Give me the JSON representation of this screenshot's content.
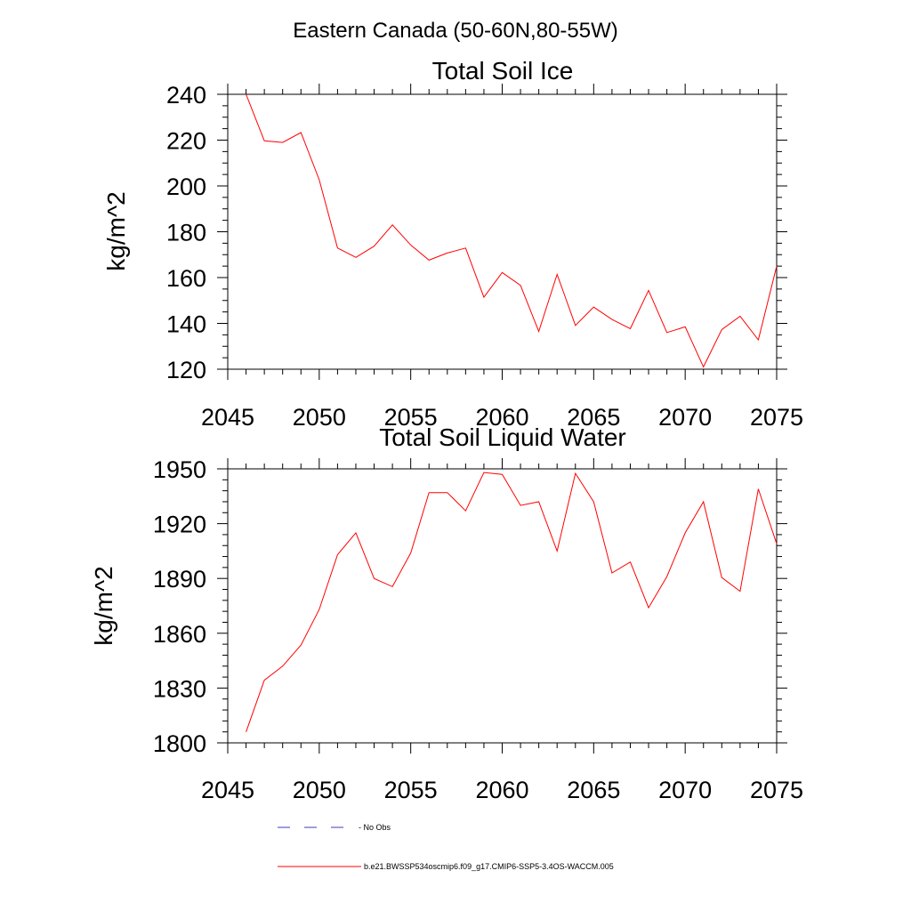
{
  "figure_title": "Eastern Canada (50-60N,80-55W)",
  "colors": {
    "series": "#ff0000",
    "obs": "#3b3bb5",
    "axes": "#000000"
  },
  "chart_data": [
    {
      "type": "line",
      "title": "Total Soil Ice",
      "xlabel": "",
      "ylabel": "kg/m^2",
      "xlim": [
        2045,
        2075
      ],
      "ylim": [
        120,
        240
      ],
      "xticks": [
        2045,
        2050,
        2055,
        2060,
        2065,
        2070,
        2075
      ],
      "yticks": [
        120,
        140,
        160,
        180,
        200,
        220,
        240
      ],
      "y_minor_step": 5,
      "x_minor_step": 1,
      "grid": false,
      "series": [
        {
          "name": "b.e21.BWSSP534oscmip6.f09_g17.CMIP6-SSP5-3.4OS-WACCM.005",
          "x": [
            2046,
            2047,
            2048,
            2049,
            2050,
            2051,
            2052,
            2053,
            2054,
            2055,
            2056,
            2057,
            2058,
            2059,
            2060,
            2061,
            2062,
            2063,
            2064,
            2065,
            2066,
            2067,
            2068,
            2069,
            2070,
            2071,
            2072,
            2073,
            2074,
            2075
          ],
          "values": [
            240,
            219.7,
            219,
            223.3,
            202.7,
            172.9,
            168.8,
            173.7,
            183,
            174.2,
            167.6,
            170.7,
            172.9,
            151.4,
            162.2,
            156.6,
            136.5,
            161.4,
            139.1,
            147.1,
            141.7,
            137.7,
            154.4,
            136,
            138.5,
            121,
            137.3,
            143.1,
            132.8,
            165
          ]
        }
      ]
    },
    {
      "type": "line",
      "title": "Total Soil Liquid Water",
      "xlabel": "",
      "ylabel": "kg/m^2",
      "xlim": [
        2045,
        2075
      ],
      "ylim": [
        1800,
        1950
      ],
      "xticks": [
        2045,
        2050,
        2055,
        2060,
        2065,
        2070,
        2075
      ],
      "yticks": [
        1800,
        1830,
        1860,
        1890,
        1920,
        1950
      ],
      "y_minor_step": 6,
      "x_minor_step": 1,
      "grid": false,
      "series": [
        {
          "name": "b.e21.BWSSP534oscmip6.f09_g17.CMIP6-SSP5-3.4OS-WACCM.005",
          "x": [
            2046,
            2047,
            2048,
            2049,
            2050,
            2051,
            2052,
            2053,
            2054,
            2055,
            2056,
            2057,
            2058,
            2059,
            2060,
            2061,
            2062,
            2063,
            2064,
            2065,
            2066,
            2067,
            2068,
            2069,
            2070,
            2071,
            2072,
            2073,
            2074,
            2075
          ],
          "values": [
            1806,
            1834.3,
            1842,
            1853.5,
            1873,
            1903,
            1915,
            1890,
            1885.5,
            1904,
            1937,
            1937,
            1927,
            1948,
            1947,
            1930,
            1932,
            1905,
            1947.5,
            1932,
            1893,
            1899,
            1874,
            1891,
            1915,
            1932,
            1890.5,
            1883,
            1939,
            1909
          ]
        }
      ]
    }
  ],
  "legend": {
    "placement": "bottom-center",
    "entries": [
      {
        "label": "- No Obs",
        "style": "dashed"
      },
      {
        "label": "b.e21.BWSSP534oscmip6.f09_g17.CMIP6-SSP5-3.4OS-WACCM.005",
        "style": "solid"
      }
    ]
  }
}
